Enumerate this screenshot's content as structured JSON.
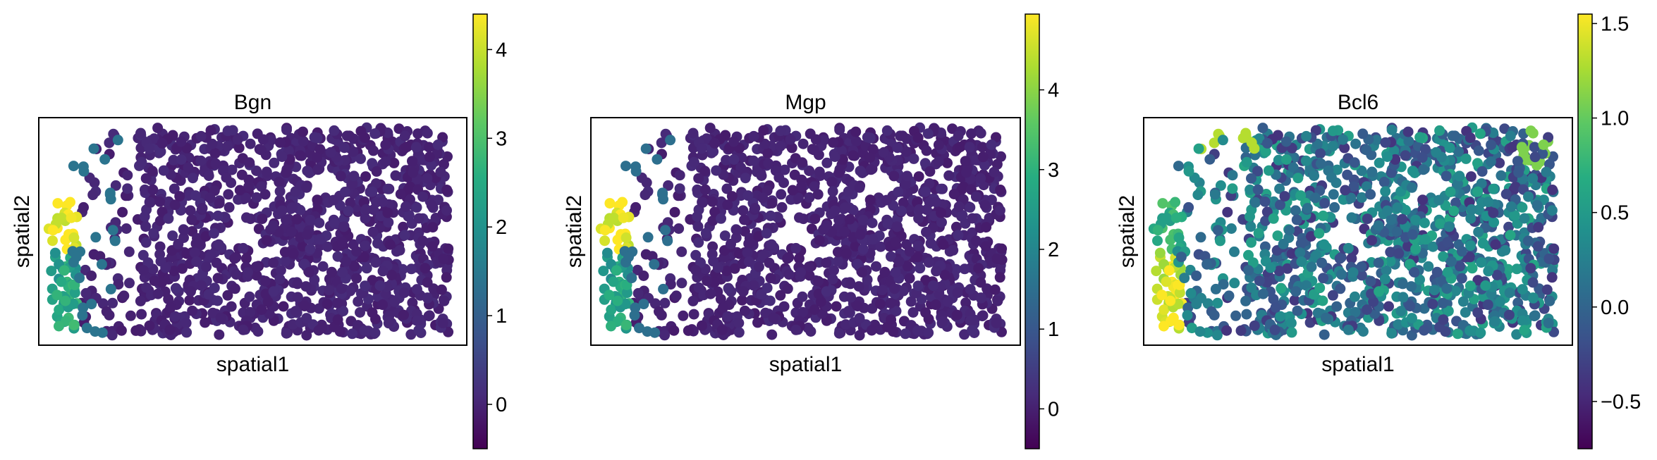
{
  "figure": {
    "xlabel": "spatial1",
    "ylabel": "spatial2",
    "colormap": "viridis",
    "colormap_stops": [
      "#440154",
      "#472c7a",
      "#3b518b",
      "#2c718e",
      "#21908d",
      "#27ad81",
      "#5cc863",
      "#aadc32",
      "#fde725"
    ]
  },
  "chart_data": [
    {
      "type": "scatter",
      "title": "Bgn",
      "xlabel": "spatial1",
      "ylabel": "spatial2",
      "colorbar": {
        "min": -0.5,
        "max": 4.4,
        "ticks": [
          0,
          1,
          2,
          3,
          4
        ]
      },
      "hotspots": [
        {
          "region": "left-edge",
          "value": 4.3
        },
        {
          "region": "left-edge-lower",
          "value": 2.4
        },
        {
          "region": "left-column",
          "value": 1.4
        },
        {
          "region": "main-area",
          "value": 0.0
        }
      ]
    },
    {
      "type": "scatter",
      "title": "Mgp",
      "xlabel": "spatial1",
      "ylabel": "spatial2",
      "colorbar": {
        "min": -0.5,
        "max": 4.95,
        "ticks": [
          0,
          1,
          2,
          3,
          4
        ]
      },
      "hotspots": [
        {
          "region": "left-edge",
          "value": 4.8
        },
        {
          "region": "left-edge-lower",
          "value": 2.6
        },
        {
          "region": "left-column",
          "value": 1.5
        },
        {
          "region": "main-area",
          "value": 0.05
        }
      ]
    },
    {
      "type": "scatter",
      "title": "Bcl6",
      "xlabel": "spatial1",
      "ylabel": "spatial2",
      "colorbar": {
        "min": -0.75,
        "max": 1.55,
        "ticks": [
          -0.5,
          0.0,
          0.5,
          1.0,
          1.5
        ],
        "tick_labels": [
          "−0.5",
          "0.0",
          "0.5",
          "1.0",
          "1.5"
        ]
      },
      "hotspots": [
        {
          "region": "left-edge",
          "value": 0.7
        },
        {
          "region": "left-edge-lower",
          "value": 1.4
        },
        {
          "region": "top-left",
          "value": 1.3
        },
        {
          "region": "top-right",
          "value": 1.1
        },
        {
          "region": "main-area",
          "value": 0.1
        }
      ]
    }
  ]
}
